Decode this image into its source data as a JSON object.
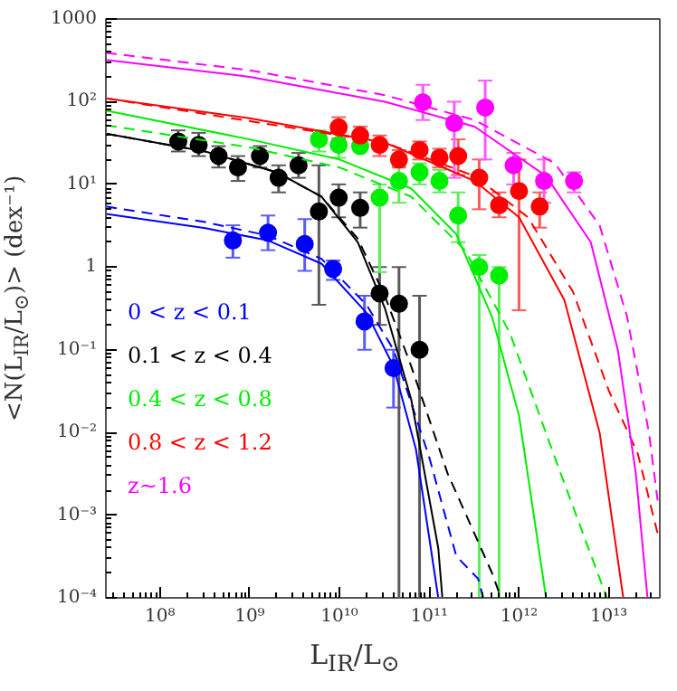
{
  "chart_data": {
    "type": "scatter",
    "xlabel": "L$_{IR}$/L$_{⊙}$",
    "ylabel": "<N(L$_{IR}$/L$_{⊙}$)> (dex⁻¹)",
    "log": "xy",
    "grid": false,
    "legend": "bottom left",
    "marker": "circle",
    "xlim": [
      25000000.0,
      37000000000000.0
    ],
    "ylim": [
      0.0001,
      1000
    ],
    "xticks": [
      {
        "value": 100000000.0,
        "label": "10⁸"
      },
      {
        "value": 1000000000.0,
        "label": "10⁹"
      },
      {
        "value": 10000000000.0,
        "label": "10¹⁰"
      },
      {
        "value": 100000000000.0,
        "label": "10¹¹"
      },
      {
        "value": 1000000000000.0,
        "label": "10¹²"
      },
      {
        "value": 10000000000000.0,
        "label": "10¹³"
      }
    ],
    "yticks": [
      {
        "value": 0.0001,
        "label": "10⁻⁴"
      },
      {
        "value": 0.001,
        "label": "10⁻³"
      },
      {
        "value": 0.01,
        "label": "10⁻²"
      },
      {
        "value": 0.1,
        "label": "10⁻¹"
      },
      1,
      {
        "value": 10,
        "label": "10¹"
      },
      {
        "value": 100,
        "label": "10²"
      },
      1000
    ],
    "series": [
      {
        "name": "0 < z < 0.1",
        "color": "#0000ff",
        "x": [
          650000000.0,
          1600000000.0,
          4100000000.0,
          8500000000.0,
          19000000000.0,
          40000000000.0
        ],
        "values": [
          2.1,
          2.6,
          1.9,
          0.95,
          0.22,
          0.06
        ],
        "errors": [
          [
            1.3,
            3.2
          ],
          [
            1.6,
            4.2
          ],
          [
            0.9,
            3.8
          ],
          [
            0.7,
            1.2
          ],
          [
            0.1,
            0.45
          ],
          [
            0.02,
            0.1
          ]
        ]
      },
      {
        "name": "0.1 < z < 0.4",
        "color": "#000000",
        "x": [
          160000000.0,
          270000000.0,
          450000000.0,
          740000000.0,
          1300000000.0,
          2100000000.0,
          3500000000.0,
          5900000000.0,
          9800000000.0,
          17000000000.0,
          28000000000.0,
          46000000000.0,
          78000000000.0
        ],
        "values": [
          33,
          30,
          22,
          16,
          22,
          12,
          17,
          4.7,
          6.9,
          5.2,
          0.48,
          0.36,
          0.1
        ],
        "errors": [
          [
            25,
            45
          ],
          [
            22,
            42
          ],
          [
            16,
            29
          ],
          [
            11,
            22
          ],
          [
            16,
            29
          ],
          [
            8,
            17
          ],
          [
            12,
            24
          ],
          [
            0.35,
            17
          ],
          [
            4,
            10
          ],
          [
            3,
            8
          ],
          [
            0.2,
            1.0
          ],
          [
            0.0001,
            1.0
          ],
          [
            0.0001,
            0.45
          ]
        ]
      },
      {
        "name": "0.4 < z < 0.8",
        "color": "#00ee00",
        "x": [
          5900000000.0,
          9800000000.0,
          17000000000.0,
          28000000000.0,
          46000000000.0,
          78000000000.0,
          130000000000.0,
          210000000000.0,
          360000000000.0,
          600000000000.0
        ],
        "values": [
          35,
          30,
          29,
          6.9,
          11,
          14,
          11,
          4.2,
          1.0,
          0.79
        ],
        "errors": [
          [
            25,
            45
          ],
          [
            21,
            42
          ],
          null,
          [
            0.87,
            10
          ],
          [
            6,
            17
          ],
          [
            10,
            18
          ],
          [
            8,
            15
          ],
          [
            2,
            8
          ],
          [
            0.0001,
            1.4
          ],
          [
            0.0001,
            1.0
          ]
        ]
      },
      {
        "name": "0.8 < z < 1.2",
        "color": "#ff0000",
        "x": [
          9800000000.0,
          17000000000.0,
          28000000000.0,
          46000000000.0,
          78000000000.0,
          130000000000.0,
          210000000000.0,
          360000000000.0,
          600000000000.0,
          1000000000000.0,
          1700000000000.0
        ],
        "values": [
          49,
          39,
          30,
          20,
          26,
          21,
          22,
          12,
          5.6,
          8.3,
          5.4
        ],
        "errors": [
          [
            36,
            65
          ],
          [
            30,
            50
          ],
          [
            22,
            39
          ],
          [
            16,
            26
          ],
          [
            20,
            33
          ],
          [
            16,
            27
          ],
          [
            13,
            35
          ],
          [
            5,
            20
          ],
          [
            4,
            8
          ],
          [
            0.3,
            20
          ],
          [
            3,
            8
          ]
        ]
      },
      {
        "name": "z~1.6",
        "color": "#ff00ff",
        "x": [
          85000000000.0,
          190000000000.0,
          420000000000.0,
          870000000000.0,
          1900000000000.0,
          4100000000000.0
        ],
        "values": [
          98,
          55,
          85,
          17,
          11,
          11
        ],
        "errors": [
          [
            60,
            160
          ],
          [
            12,
            100
          ],
          [
            20,
            180
          ],
          [
            10,
            24
          ],
          [
            6,
            20
          ],
          [
            8,
            14
          ]
        ]
      },
      {
        "type": "line",
        "marker": "none",
        "line_style": "solid",
        "color": "#0000ff",
        "x": [
          25000000.0,
          320000000.0,
          1600000000.0,
          6300000000.0,
          20000000000.0,
          40000000000.0,
          71000000000.0,
          126000000000.0
        ],
        "values": [
          4.4,
          2.95,
          2.1,
          1.1,
          0.28,
          0.063,
          0.0063,
          0.0001
        ]
      },
      {
        "type": "line",
        "marker": "none",
        "line_style": "dashed",
        "color": "#0000ff",
        "x": [
          25000000.0,
          320000000.0,
          1600000000.0,
          6300000000.0,
          20000000000.0,
          40000000000.0,
          100000000000.0,
          200000000000.0,
          350000000000.0,
          400000000000.0
        ],
        "values": [
          5.4,
          3.5,
          2.4,
          1.26,
          0.35,
          0.1,
          0.005,
          0.00032,
          0.00017,
          0.0001
        ]
      },
      {
        "type": "line",
        "marker": "none",
        "line_style": "solid",
        "color": "#000000",
        "x": [
          25000000.0,
          320000000.0,
          2000000000.0,
          6300000000.0,
          16000000000.0,
          32000000000.0,
          63000000000.0,
          126000000000.0,
          140000000000.0
        ],
        "values": [
          41,
          25,
          14,
          7.1,
          2.0,
          0.32,
          0.025,
          0.0004,
          0.0001
        ]
      },
      {
        "type": "line",
        "marker": "none",
        "line_style": "dashed",
        "color": "#000000",
        "x": [
          25000000.0,
          320000000.0,
          2000000000.0,
          6300000000.0,
          16000000000.0,
          32000000000.0,
          63000000000.0,
          160000000000.0,
          500000000000.0,
          630000000000.0
        ],
        "values": [
          41,
          25,
          14,
          7.1,
          2.2,
          0.45,
          0.063,
          0.0032,
          0.0002,
          0.0001
        ]
      },
      {
        "type": "line",
        "marker": "none",
        "line_style": "solid",
        "color": "#00ee00",
        "x": [
          25000000.0,
          1000000000.0,
          10000000000.0,
          63000000000.0,
          200000000000.0,
          500000000000.0,
          1000000000000.0,
          2000000000000.0
        ],
        "values": [
          78,
          35,
          20,
          8.9,
          2.5,
          0.25,
          0.016,
          0.0001
        ]
      },
      {
        "type": "line",
        "marker": "none",
        "line_style": "dashed",
        "color": "#00ee00",
        "x": [
          25000000.0,
          1000000000.0,
          10000000000.0,
          63000000000.0,
          250000000000.0,
          790000000000.0,
          2500000000000.0,
          9500000000000.0
        ],
        "values": [
          52,
          28,
          16,
          7.1,
          1.6,
          0.16,
          0.005,
          0.0001
        ]
      },
      {
        "type": "line",
        "marker": "none",
        "line_style": "solid",
        "color": "#ff0000",
        "x": [
          25000000.0,
          1000000000.0,
          32000000000.0,
          320000000000.0,
          1000000000000.0,
          3200000000000.0,
          7900000000000.0,
          14500000000000.0
        ],
        "values": [
          110,
          63,
          32,
          11,
          4.0,
          0.4,
          0.01,
          0.0001
        ]
      },
      {
        "type": "line",
        "marker": "none",
        "line_style": "dashed",
        "color": "#ff0000",
        "x": [
          25000000.0,
          32000000000.0,
          320000000000.0,
          1260000000000.0,
          4000000000000.0,
          10000000000000.0,
          21000000000000.0,
          35000000000000.0
        ],
        "values": [
          110,
          32,
          12.6,
          4.0,
          0.5,
          0.032,
          0.0056,
          0.0006
        ]
      },
      {
        "type": "line",
        "marker": "none",
        "line_style": "solid",
        "color": "#ff00ff",
        "x": [
          25000000.0,
          1000000000.0,
          32000000000.0,
          320000000000.0,
          2000000000000.0,
          6300000000000.0,
          12600000000000.0,
          20000000000000.0,
          27000000000000.0
        ],
        "values": [
          320,
          200,
          100,
          50,
          12.6,
          2.0,
          0.1,
          0.0032,
          0.0001
        ]
      },
      {
        "type": "line",
        "marker": "none",
        "line_style": "dashed",
        "color": "#ff00ff",
        "x": [
          25000000.0,
          1000000000.0,
          32000000000.0,
          320000000000.0,
          2500000000000.0,
          7900000000000.0,
          16000000000000.0,
          28000000000000.0,
          35000000000000.0
        ],
        "values": [
          390,
          240,
          120,
          60,
          18,
          3.2,
          0.25,
          0.01,
          0.0015
        ]
      }
    ]
  }
}
